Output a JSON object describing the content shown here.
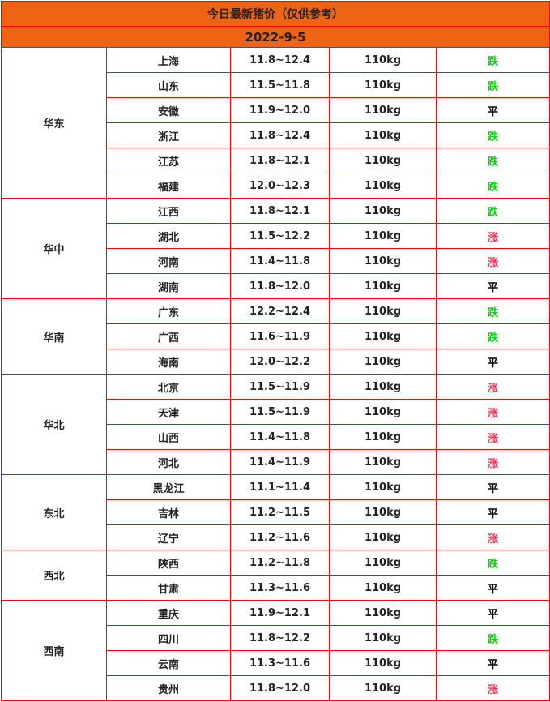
{
  "title": "今日最新猪价（仅供参考）",
  "date": "2022-9-5",
  "colors": {
    "header_bg": "#ec6414",
    "border": "#ff0000",
    "fall": "#11cc11",
    "rise": "#ff3355",
    "flat": "#000000"
  },
  "regions": [
    {
      "name": "华东",
      "rows": [
        [
          "上海",
          "11.8~12.4",
          "110kg",
          "跌"
        ],
        [
          "山东",
          "11.5~11.8",
          "110kg",
          "跌"
        ],
        [
          "安徽",
          "11.9~12.0",
          "110kg",
          "平"
        ],
        [
          "浙江",
          "11.8~12.4",
          "110kg",
          "跌"
        ],
        [
          "江苏",
          "11.8~12.1",
          "110kg",
          "跌"
        ],
        [
          "福建",
          "12.0~12.3",
          "110kg",
          "跌"
        ]
      ]
    },
    {
      "name": "华中",
      "rows": [
        [
          "江西",
          "11.8~12.1",
          "110kg",
          "跌"
        ],
        [
          "湖北",
          "11.5~12.2",
          "110kg",
          "涨"
        ],
        [
          "河南",
          "11.4~11.8",
          "110kg",
          "涨"
        ],
        [
          "湖南",
          "11.8~12.0",
          "110kg",
          "平"
        ]
      ]
    },
    {
      "name": "华南",
      "rows": [
        [
          "广东",
          "12.2~12.4",
          "110kg",
          "跌"
        ],
        [
          "广西",
          "11.6~11.9",
          "110kg",
          "跌"
        ],
        [
          "海南",
          "12.0~12.2",
          "110kg",
          "平"
        ]
      ]
    },
    {
      "name": "华北",
      "rows": [
        [
          "北京",
          "11.5~11.9",
          "110kg",
          "涨"
        ],
        [
          "天津",
          "11.5~11.9",
          "110kg",
          "涨"
        ],
        [
          "山西",
          "11.4~11.8",
          "110kg",
          "涨"
        ],
        [
          "河北",
          "11.4~11.9",
          "110kg",
          "涨"
        ]
      ]
    },
    {
      "name": "东北",
      "rows": [
        [
          "黑龙江",
          "11.1~11.4",
          "110kg",
          "平"
        ],
        [
          "吉林",
          "11.2~11.5",
          "110kg",
          "平"
        ],
        [
          "辽宁",
          "11.2~11.6",
          "110kg",
          "涨"
        ]
      ]
    },
    {
      "name": "西北",
      "rows": [
        [
          "陕西",
          "11.2~11.8",
          "110kg",
          "跌"
        ],
        [
          "甘肃",
          "11.3~11.6",
          "110kg",
          "平"
        ]
      ]
    },
    {
      "name": "西南",
      "rows": [
        [
          "重庆",
          "11.9~12.1",
          "110kg",
          "平"
        ],
        [
          "四川",
          "11.8~12.2",
          "110kg",
          "跌"
        ],
        [
          "云南",
          "11.3~11.6",
          "110kg",
          "平"
        ],
        [
          "贵州",
          "11.8~12.0",
          "110kg",
          "涨"
        ]
      ]
    }
  ]
}
